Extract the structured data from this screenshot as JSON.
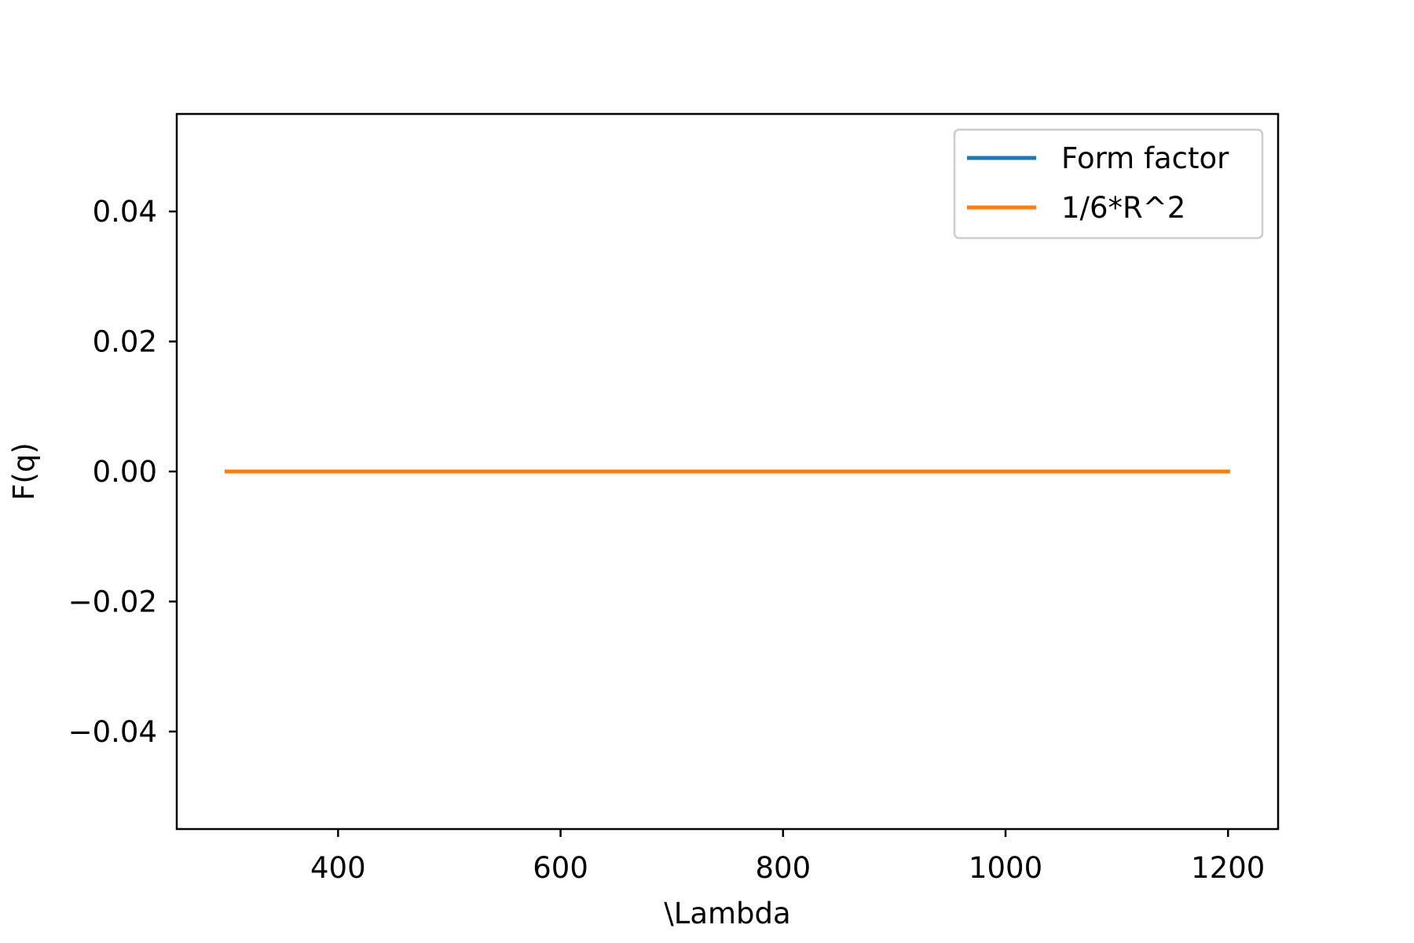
{
  "chart_data": {
    "type": "line",
    "xlabel": "\\Lambda",
    "ylabel": "F(q)",
    "xlim": [
      255,
      1245
    ],
    "ylim": [
      -0.055,
      0.055
    ],
    "xticks": [
      400,
      600,
      800,
      1000,
      1200
    ],
    "xtick_labels": [
      "400",
      "600",
      "800",
      "1000",
      "1200"
    ],
    "yticks": [
      0.04,
      0.02,
      0.0,
      -0.02,
      -0.04
    ],
    "ytick_labels": [
      "0.04",
      "0.02",
      "0.00",
      "−0.02",
      "−0.04"
    ],
    "grid": false,
    "legend": {
      "placement": "top-right"
    },
    "series": [
      {
        "name": "Form factor",
        "color": "#1f77b4",
        "x": [
          300,
          1200
        ],
        "y": [
          0.0,
          0.0
        ]
      },
      {
        "name": "1/6*R^2",
        "color": "#ff7f0e",
        "x": [
          300,
          1200
        ],
        "y": [
          0.0,
          0.0
        ]
      }
    ]
  }
}
